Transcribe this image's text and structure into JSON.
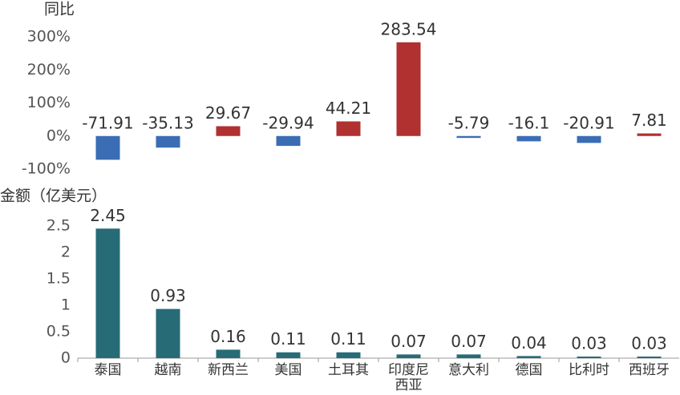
{
  "chart_data": [
    {
      "type": "bar",
      "ylabel": "同比",
      "values": [
        -71.91,
        -35.13,
        29.67,
        -29.94,
        44.21,
        283.54,
        -5.79,
        -16.1,
        -20.91,
        7.81
      ],
      "positive_color": "#b0312f",
      "negative_color": "#3a6db4",
      "ylim": [
        -100,
        300
      ],
      "yticks": [
        {
          "value": -100,
          "label": "-100%"
        },
        {
          "value": 0,
          "label": "0%"
        },
        {
          "value": 100,
          "label": "100%"
        },
        {
          "value": 200,
          "label": "200%"
        },
        {
          "value": 300,
          "label": "300%"
        }
      ]
    },
    {
      "type": "bar",
      "ylabel": "金额（亿美元）",
      "categories": [
        "泰国",
        "越南",
        "新西兰",
        "美国",
        "土耳其",
        "印度尼西亚",
        "意大利",
        "德国",
        "比利时",
        "西班牙"
      ],
      "values": [
        2.45,
        0.93,
        0.16,
        0.11,
        0.11,
        0.07,
        0.07,
        0.04,
        0.03,
        0.03
      ],
      "color": "#276b77",
      "ylim": [
        0,
        2.5
      ],
      "yticks": [
        0,
        0.5,
        1,
        1.5,
        2,
        2.5
      ]
    }
  ]
}
